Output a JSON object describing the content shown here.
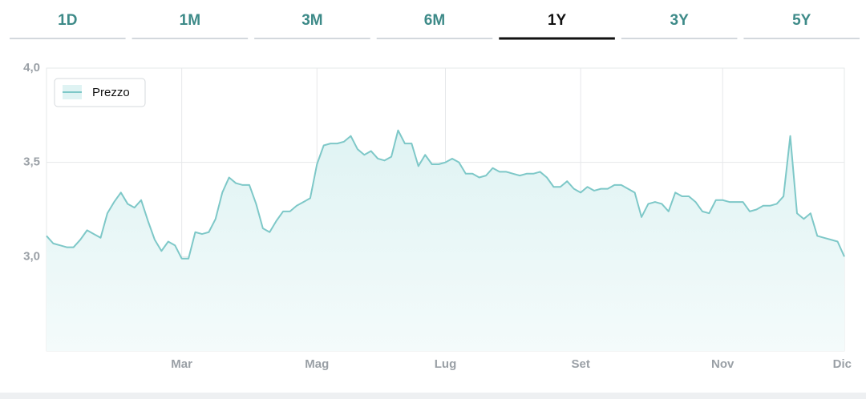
{
  "tabs": [
    "1D",
    "1M",
    "3M",
    "6M",
    "1Y",
    "3Y",
    "5Y"
  ],
  "chart_data": {
    "type": "area",
    "categories": [
      null,
      null,
      null,
      null,
      null,
      null,
      null,
      null,
      null,
      null,
      null,
      null,
      null,
      null,
      null,
      null,
      null,
      null,
      null,
      null,
      "Mar",
      null,
      null,
      null,
      null,
      null,
      null,
      null,
      null,
      null,
      null,
      null,
      null,
      null,
      null,
      null,
      null,
      null,
      null,
      null,
      "Mag",
      null,
      null,
      null,
      null,
      null,
      null,
      null,
      null,
      null,
      null,
      null,
      null,
      null,
      null,
      null,
      null,
      null,
      null,
      "Lug",
      null,
      null,
      null,
      null,
      null,
      null,
      null,
      null,
      null,
      null,
      null,
      null,
      null,
      null,
      null,
      null,
      null,
      null,
      null,
      "Set",
      null,
      null,
      null,
      null,
      null,
      null,
      null,
      null,
      null,
      null,
      null,
      null,
      null,
      null,
      null,
      null,
      null,
      null,
      null,
      null,
      "Nov",
      null,
      null,
      null,
      null,
      null,
      null,
      null,
      null,
      null,
      null,
      null,
      null,
      null,
      null,
      null,
      null,
      null,
      "Dic"
    ],
    "series": [
      {
        "name": "Prezzo",
        "color": "#7ec8c8",
        "values": [
          3.11,
          3.07,
          3.06,
          3.05,
          3.05,
          3.09,
          3.14,
          3.12,
          3.1,
          3.23,
          3.29,
          3.34,
          3.28,
          3.26,
          3.3,
          3.19,
          3.09,
          3.03,
          3.08,
          3.06,
          2.99,
          2.99,
          3.13,
          3.12,
          3.13,
          3.2,
          3.34,
          3.42,
          3.39,
          3.38,
          3.38,
          3.28,
          3.15,
          3.13,
          3.19,
          3.24,
          3.24,
          3.27,
          3.29,
          3.31,
          3.49,
          3.59,
          3.6,
          3.6,
          3.61,
          3.64,
          3.57,
          3.54,
          3.56,
          3.52,
          3.51,
          3.53,
          3.67,
          3.6,
          3.6,
          3.48,
          3.54,
          3.49,
          3.49,
          3.5,
          3.52,
          3.5,
          3.44,
          3.44,
          3.42,
          3.43,
          3.47,
          3.45,
          3.45,
          3.44,
          3.43,
          3.44,
          3.44,
          3.45,
          3.42,
          3.37,
          3.37,
          3.4,
          3.36,
          3.34,
          3.37,
          3.35,
          3.36,
          3.36,
          3.38,
          3.38,
          3.36,
          3.34,
          3.21,
          3.28,
          3.29,
          3.28,
          3.24,
          3.34,
          3.32,
          3.32,
          3.29,
          3.24,
          3.23,
          3.3,
          3.3,
          3.29,
          3.29,
          3.29,
          3.24,
          3.25,
          3.27,
          3.27,
          3.28,
          3.32,
          3.64,
          3.23,
          3.2,
          3.23,
          3.11,
          3.1,
          3.09,
          3.08,
          3.0
        ]
      }
    ],
    "ylim": [
      2.5,
      4.0
    ],
    "yticks": [
      {
        "value": 3.0,
        "label": "3,0"
      },
      {
        "value": 3.5,
        "label": "3,5"
      },
      {
        "value": 4.0,
        "label": "4,0"
      }
    ],
    "grid": true,
    "legend": "top-left"
  }
}
